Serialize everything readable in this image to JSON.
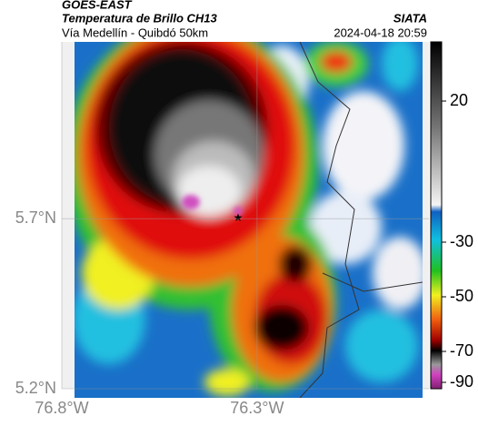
{
  "header": {
    "title": "GOES-EAST",
    "subtitle": "Temperatura de Brillo CH13",
    "route": "Vía Medellín - Quibdó 50km",
    "source": "SIATA",
    "timestamp": "2024-04-18 20:59"
  },
  "map": {
    "xlim": [
      -76.8,
      -75.86
    ],
    "ylim": [
      5.2,
      6.22
    ],
    "xticks": [
      {
        "value": -76.8,
        "label": "76.8°W"
      },
      {
        "value": -76.3,
        "label": "76.3°W"
      }
    ],
    "yticks": [
      {
        "value": 5.7,
        "label": "5.7°N"
      },
      {
        "value": 5.2,
        "label": "5.2°N"
      }
    ],
    "colorbar_ticks": [
      20,
      -30,
      -50,
      -70,
      -90
    ]
  }
}
